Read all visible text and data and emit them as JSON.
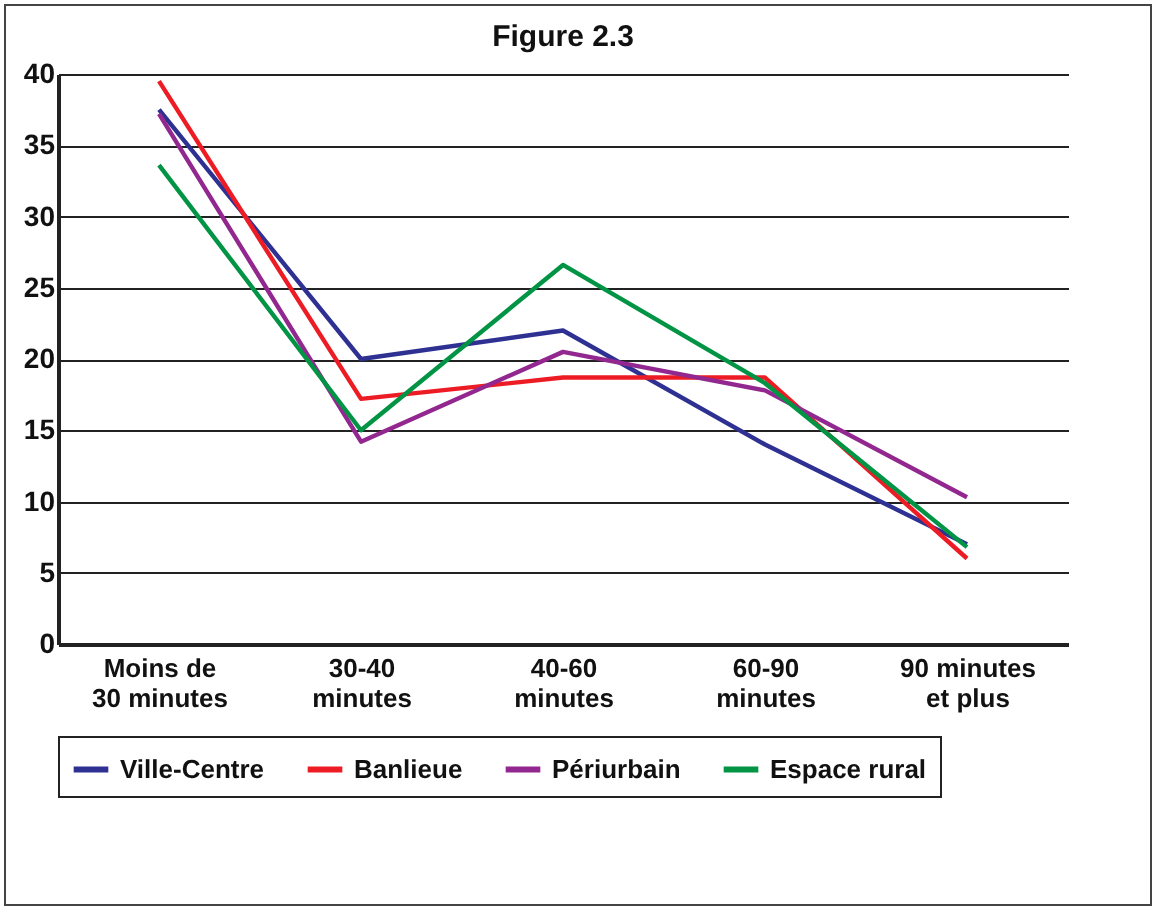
{
  "chart_data": {
    "type": "line",
    "title": "Figure 2.3",
    "categories": [
      "Moins de\n30 minutes",
      "30-40\nminutes",
      "40-60\nminutes",
      "60-90\nminutes",
      "90 minutes\net plus"
    ],
    "series": [
      {
        "name": "Ville-Centre",
        "color": "#2e3192",
        "values": [
          37.5,
          20,
          22,
          14,
          7
        ]
      },
      {
        "name": "Banlieue",
        "color": "#ed1c24",
        "values": [
          39.5,
          17.2,
          18.7,
          18.7,
          6
        ]
      },
      {
        "name": "Périurbain",
        "color": "#92278f",
        "values": [
          37.2,
          14.2,
          20.5,
          17.8,
          10.3
        ]
      },
      {
        "name": "Espace rural",
        "color": "#009444",
        "values": [
          33.6,
          15,
          26.6,
          18.3,
          6.8
        ]
      }
    ],
    "ylim": [
      0,
      40
    ],
    "yticks": [
      0,
      5,
      10,
      15,
      20,
      25,
      30,
      35,
      40
    ],
    "grid": "y",
    "legend": "bottom",
    "line_style": "solid"
  }
}
